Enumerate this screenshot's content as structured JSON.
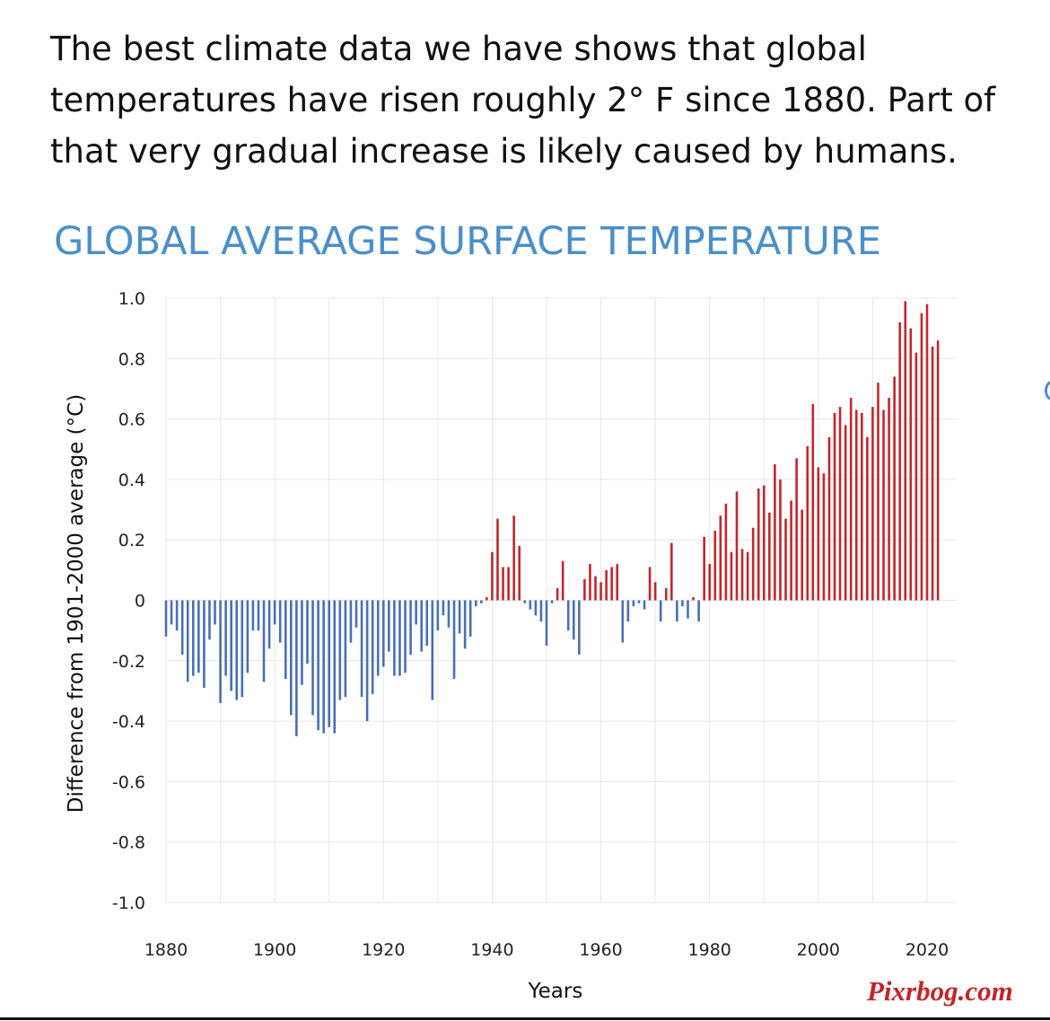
{
  "caption": "The best climate data we have shows that global temperatures have risen roughly 2° F since 1880. Part of that very gradual increase is likely caused by humans.",
  "watermark": "Pixrbog.com",
  "colors": {
    "positive": "#c1272d",
    "negative": "#4a6fb5",
    "title": "#4a8fc9",
    "grid": "#e6e6e6"
  },
  "chart_data": {
    "type": "bar",
    "title": "GLOBAL AVERAGE SURFACE TEMPERATURE",
    "xlabel": "Years",
    "ylabel": "Difference from 1901-2000 average (°C)",
    "ylim": [
      -1.0,
      1.0
    ],
    "yticks": [
      "1.0",
      "0.8",
      "0.6",
      "0.4",
      "0.2",
      "0",
      "-0.2",
      "-0.4",
      "-0.6",
      "-0.8",
      "-1.0"
    ],
    "yticks_values": [
      1.0,
      0.8,
      0.6,
      0.4,
      0.2,
      0,
      -0.2,
      -0.4,
      -0.6,
      -0.8,
      -1.0
    ],
    "xticks": [
      "1880",
      "1900",
      "1920",
      "1940",
      "1960",
      "1980",
      "2000",
      "2020"
    ],
    "xticks_values": [
      1880,
      1900,
      1920,
      1940,
      1960,
      1980,
      2000,
      2020
    ],
    "grid": true,
    "x": [
      1880,
      1881,
      1882,
      1883,
      1884,
      1885,
      1886,
      1887,
      1888,
      1889,
      1890,
      1891,
      1892,
      1893,
      1894,
      1895,
      1896,
      1897,
      1898,
      1899,
      1900,
      1901,
      1902,
      1903,
      1904,
      1905,
      1906,
      1907,
      1908,
      1909,
      1910,
      1911,
      1912,
      1913,
      1914,
      1915,
      1916,
      1917,
      1918,
      1919,
      1920,
      1921,
      1922,
      1923,
      1924,
      1925,
      1926,
      1927,
      1928,
      1929,
      1930,
      1931,
      1932,
      1933,
      1934,
      1935,
      1936,
      1937,
      1938,
      1939,
      1940,
      1941,
      1942,
      1943,
      1944,
      1945,
      1946,
      1947,
      1948,
      1949,
      1950,
      1951,
      1952,
      1953,
      1954,
      1955,
      1956,
      1957,
      1958,
      1959,
      1960,
      1961,
      1962,
      1963,
      1964,
      1965,
      1966,
      1967,
      1968,
      1969,
      1970,
      1971,
      1972,
      1973,
      1974,
      1975,
      1976,
      1977,
      1978,
      1979,
      1980,
      1981,
      1982,
      1983,
      1984,
      1985,
      1986,
      1987,
      1988,
      1989,
      1990,
      1991,
      1992,
      1993,
      1994,
      1995,
      1996,
      1997,
      1998,
      1999,
      2000,
      2001,
      2002,
      2003,
      2004,
      2005,
      2006,
      2007,
      2008,
      2009,
      2010,
      2011,
      2012,
      2013,
      2014,
      2015,
      2016,
      2017,
      2018,
      2019,
      2020,
      2021,
      2022
    ],
    "values": [
      -0.12,
      -0.08,
      -0.1,
      -0.18,
      -0.27,
      -0.25,
      -0.24,
      -0.29,
      -0.13,
      -0.08,
      -0.34,
      -0.25,
      -0.3,
      -0.33,
      -0.32,
      -0.24,
      -0.1,
      -0.1,
      -0.27,
      -0.16,
      -0.08,
      -0.14,
      -0.26,
      -0.38,
      -0.45,
      -0.28,
      -0.21,
      -0.38,
      -0.43,
      -0.44,
      -0.42,
      -0.44,
      -0.33,
      -0.32,
      -0.14,
      -0.09,
      -0.32,
      -0.4,
      -0.31,
      -0.25,
      -0.22,
      -0.17,
      -0.25,
      -0.25,
      -0.24,
      -0.18,
      -0.08,
      -0.17,
      -0.15,
      -0.33,
      -0.1,
      -0.05,
      -0.09,
      -0.26,
      -0.11,
      -0.16,
      -0.12,
      -0.02,
      -0.01,
      0.01,
      0.16,
      0.27,
      0.11,
      0.11,
      0.28,
      0.18,
      -0.01,
      -0.03,
      -0.05,
      -0.07,
      -0.15,
      -0.01,
      0.04,
      0.13,
      -0.1,
      -0.13,
      -0.18,
      0.07,
      0.12,
      0.08,
      0.06,
      0.1,
      0.11,
      0.12,
      -0.14,
      -0.07,
      -0.02,
      -0.01,
      -0.03,
      0.11,
      0.06,
      -0.07,
      0.04,
      0.19,
      -0.07,
      -0.02,
      -0.06,
      0.01,
      -0.07,
      0.21,
      0.12,
      0.23,
      0.28,
      0.32,
      0.16,
      0.36,
      0.17,
      0.16,
      0.24,
      0.37,
      0.38,
      0.29,
      0.45,
      0.4,
      0.27,
      0.33,
      0.47,
      0.3,
      0.51,
      0.65,
      0.44,
      0.42,
      0.54,
      0.62,
      0.64,
      0.58,
      0.67,
      0.63,
      0.62,
      0.54,
      0.64,
      0.72,
      0.63,
      0.67,
      0.74,
      0.92,
      0.99,
      0.9,
      0.82,
      0.95,
      0.98,
      0.84,
      0.86
    ]
  }
}
